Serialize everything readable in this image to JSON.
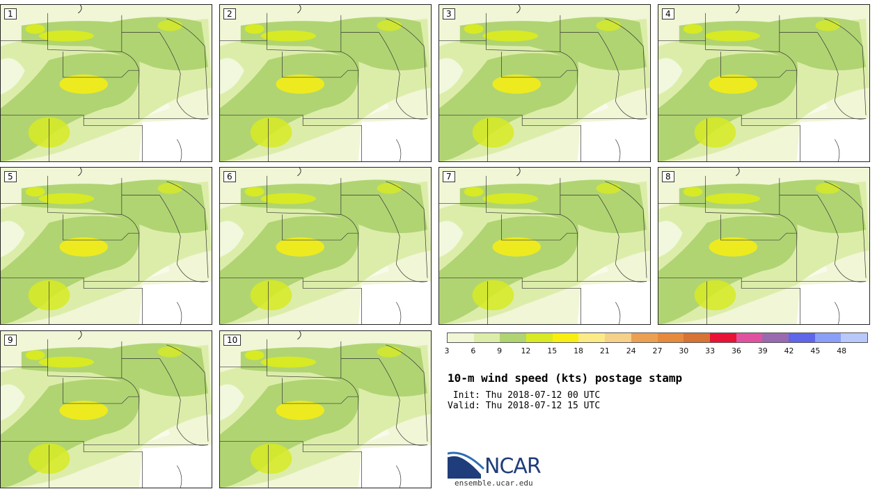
{
  "panels": [
    {
      "label": "1"
    },
    {
      "label": "2"
    },
    {
      "label": "3"
    },
    {
      "label": "4"
    },
    {
      "label": "5"
    },
    {
      "label": "6"
    },
    {
      "label": "7"
    },
    {
      "label": "8"
    },
    {
      "label": "9"
    },
    {
      "label": "10"
    }
  ],
  "colorbar": {
    "colors": [
      "#f1f6d6",
      "#dcedaa",
      "#b0d472",
      "#d7ea24",
      "#f8ef10",
      "#fbeb86",
      "#f6d18a",
      "#eca052",
      "#e68a3e",
      "#d67335",
      "#e81335",
      "#e0529f",
      "#9a6ab0",
      "#5f66ea",
      "#8a9ff7",
      "#b8c8fa"
    ],
    "ticks": [
      "3",
      "6",
      "9",
      "12",
      "15",
      "18",
      "21",
      "24",
      "27",
      "30",
      "33",
      "36",
      "39",
      "42",
      "45",
      "48"
    ]
  },
  "title": "10-m wind speed (kts) postage stamp",
  "init": " Init: Thu 2018-07-12 00 UTC",
  "valid": "Valid: Thu 2018-07-12 15 UTC",
  "logo": {
    "text": "NCAR",
    "colors": {
      "navy": "#1f3d7a",
      "blue": "#2e6db4"
    }
  },
  "url": "ensemble.ucar.edu"
}
